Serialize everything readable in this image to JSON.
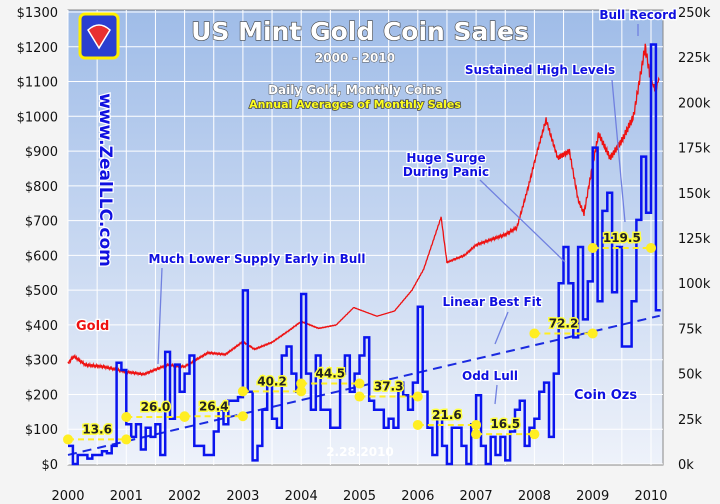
{
  "chart_data": {
    "type": "line",
    "title": "US Mint Gold Coin Sales",
    "subtitle": "2000 - 2010",
    "note_line1": "Daily Gold, Monthly Coins",
    "note_line2": "Annual Averages of Monthly Sales",
    "watermark_url": "www.ZealLLC.com",
    "date_stamp": "2.28.2010",
    "x_ticks": [
      "2000",
      "2001",
      "2002",
      "2003",
      "2004",
      "2005",
      "2006",
      "2007",
      "2008",
      "2009",
      "2010"
    ],
    "y_left_ticks": [
      "$0",
      "$100",
      "$200",
      "$300",
      "$400",
      "$500",
      "$600",
      "$700",
      "$800",
      "$900",
      "$1000",
      "$1100",
      "$1200",
      "$1300"
    ],
    "y_right_ticks": [
      "0k",
      "25k",
      "50k",
      "75k",
      "100k",
      "125k",
      "150k",
      "175k",
      "200k",
      "225k",
      "250k"
    ],
    "y_left_range": [
      0,
      1300
    ],
    "y_right_range": [
      0,
      250
    ],
    "x_range": [
      2000,
      2010.2
    ],
    "series": [
      {
        "name": "Gold",
        "axis": "left",
        "color": "#ee1111",
        "points": [
          [
            2000,
            290
          ],
          [
            2000.1,
            310
          ],
          [
            2000.3,
            285
          ],
          [
            2000.6,
            280
          ],
          [
            2001.0,
            265
          ],
          [
            2001.3,
            258
          ],
          [
            2001.7,
            285
          ],
          [
            2002.0,
            280
          ],
          [
            2002.4,
            320
          ],
          [
            2002.7,
            315
          ],
          [
            2003.0,
            352
          ],
          [
            2003.2,
            330
          ],
          [
            2003.5,
            350
          ],
          [
            2003.8,
            385
          ],
          [
            2004.0,
            410
          ],
          [
            2004.3,
            390
          ],
          [
            2004.6,
            400
          ],
          [
            2004.9,
            450
          ],
          [
            2005.3,
            425
          ],
          [
            2005.6,
            440
          ],
          [
            2005.9,
            500
          ],
          [
            2006.1,
            560
          ],
          [
            2006.4,
            710
          ],
          [
            2006.5,
            580
          ],
          [
            2006.8,
            600
          ],
          [
            2007.0,
            630
          ],
          [
            2007.5,
            660
          ],
          [
            2007.7,
            680
          ],
          [
            2007.9,
            800
          ],
          [
            2008.05,
            900
          ],
          [
            2008.2,
            990
          ],
          [
            2008.4,
            880
          ],
          [
            2008.6,
            900
          ],
          [
            2008.75,
            760
          ],
          [
            2008.85,
            720
          ],
          [
            2009.0,
            860
          ],
          [
            2009.1,
            950
          ],
          [
            2009.3,
            880
          ],
          [
            2009.5,
            930
          ],
          [
            2009.7,
            1000
          ],
          [
            2009.9,
            1200
          ],
          [
            2010.0,
            1100
          ],
          [
            2010.08,
            1080
          ],
          [
            2010.15,
            1110
          ]
        ]
      },
      {
        "name": "Coin Ozs",
        "axis": "right",
        "unit": "k oz",
        "color": "#0a14ee",
        "start": 2000,
        "interval": "monthly",
        "values": [
          10,
          0,
          5,
          5,
          3,
          5,
          5,
          7,
          6,
          10,
          56,
          52,
          22,
          15,
          22,
          8,
          20,
          15,
          22,
          5,
          62,
          25,
          55,
          40,
          50,
          60,
          10,
          10,
          5,
          5,
          18,
          30,
          22,
          35,
          35,
          37,
          96,
          40,
          2,
          10,
          30,
          45,
          25,
          20,
          60,
          65,
          50,
          40,
          94,
          50,
          30,
          60,
          30,
          30,
          20,
          20,
          50,
          60,
          40,
          50,
          60,
          70,
          35,
          30,
          30,
          20,
          25,
          20,
          45,
          38,
          30,
          45,
          87,
          40,
          20,
          5,
          25,
          10,
          0,
          20,
          20,
          10,
          0,
          22,
          38,
          10,
          0,
          15,
          5,
          15,
          2,
          18,
          30,
          35,
          10,
          20,
          25,
          40,
          45,
          15,
          50,
          100,
          120,
          100,
          70,
          120,
          80,
          101,
          175,
          90,
          140,
          150,
          95,
          120,
          65,
          65,
          90,
          135,
          170,
          139,
          232,
          85
        ]
      }
    ],
    "annual_averages": [
      {
        "year": 2000,
        "value": 13.6,
        "label": "13.6"
      },
      {
        "year": 2001,
        "value": 26.0,
        "label": "26.0"
      },
      {
        "year": 2002,
        "value": 26.4,
        "label": "26.4"
      },
      {
        "year": 2003,
        "value": 40.2,
        "label": "40.2"
      },
      {
        "year": 2004,
        "value": 44.5,
        "label": "44.5"
      },
      {
        "year": 2005,
        "value": 37.3,
        "label": "37.3"
      },
      {
        "year": 2006,
        "value": 21.6,
        "label": "21.6"
      },
      {
        "year": 2007,
        "value": 16.5,
        "label": "16.5"
      },
      {
        "year": 2008,
        "value": 72.2,
        "label": "72.2"
      },
      {
        "year": 2009,
        "value": 119.5,
        "label": "119.5"
      }
    ],
    "best_fit": {
      "name": "Linear Best Fit",
      "from": [
        2000,
        5
      ],
      "to": [
        2010.15,
        82
      ]
    },
    "series_labels": {
      "gold": "Gold",
      "coins": "Coin Ozs"
    },
    "annotations": {
      "bull_record": "Bull Record",
      "sustained": "Sustained High Levels",
      "surge_1": "Huge Surge",
      "surge_2": "During Panic",
      "lower_supply": "Much Lower Supply Early in Bull",
      "best_fit": "Linear Best Fit",
      "odd_lull": "Odd Lull"
    },
    "grid": true
  }
}
